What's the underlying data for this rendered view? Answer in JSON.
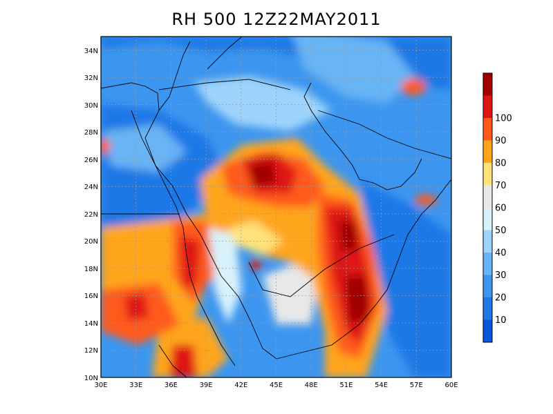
{
  "title": "RH 500 12Z22MAY2011",
  "map": {
    "lon_range": [
      30,
      60
    ],
    "lat_range": [
      10,
      35
    ],
    "x_ticks": [
      "30E",
      "33E",
      "36E",
      "39E",
      "42E",
      "45E",
      "48E",
      "51E",
      "54E",
      "57E",
      "60E"
    ],
    "y_ticks": [
      "10N",
      "12N",
      "14N",
      "16N",
      "18N",
      "20N",
      "22N",
      "24N",
      "26N",
      "28N",
      "30N",
      "32N",
      "34N"
    ],
    "grid": "dotted"
  },
  "colorbar": {
    "labels": [
      "10",
      "20",
      "30",
      "40",
      "50",
      "60",
      "70",
      "80",
      "90",
      "100"
    ],
    "colors": [
      "#0a55d8",
      "#1f78e6",
      "#3c96ef",
      "#68b4f5",
      "#9ed4fb",
      "#d8f2fc",
      "#e8e8e8",
      "#ffe27a",
      "#ffa51a",
      "#ff5a1a",
      "#de1414",
      "#a00000"
    ]
  }
}
